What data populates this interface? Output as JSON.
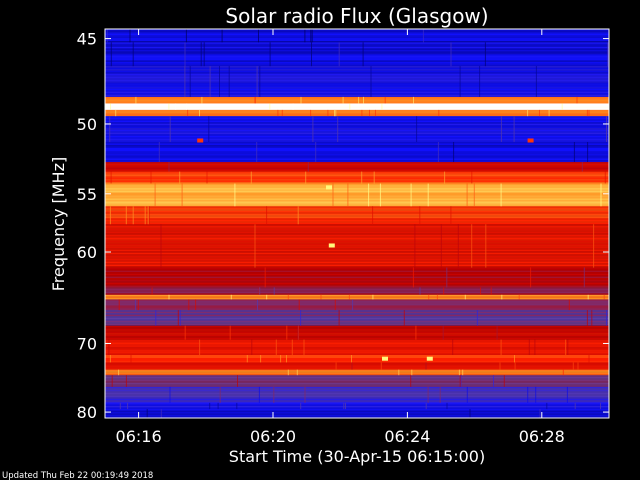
{
  "chart_data": {
    "type": "heatmap",
    "title": "Solar radio Flux (Glasgow)",
    "xlabel": "Start Time (30-Apr-15 06:15:00)",
    "ylabel": "Frequency [MHz]",
    "x_ticks": [
      "06:16",
      "06:20",
      "06:24",
      "06:28"
    ],
    "y_ticks": [
      "45",
      "50",
      "55",
      "60",
      "70",
      "80"
    ],
    "y_tick_values": [
      45,
      50,
      55,
      60,
      70,
      80
    ],
    "xlim": [
      "06:15:00",
      "06:30:00"
    ],
    "ylim": [
      44.5,
      81
    ],
    "y_scale": "reciprocal",
    "colormap": [
      "#000060",
      "#1010ff",
      "#6040a0",
      "#c00000",
      "#ff2000",
      "#ff9020",
      "#ffff80",
      "#ffffff"
    ],
    "bands": [
      {
        "from": 44.5,
        "to": 45.2,
        "level": 0.1
      },
      {
        "from": 45.2,
        "to": 46.5,
        "level": 0.12
      },
      {
        "from": 46.5,
        "to": 48.3,
        "level": 0.15
      },
      {
        "from": 48.3,
        "to": 48.7,
        "level": 0.7
      },
      {
        "from": 48.7,
        "to": 49.1,
        "level": 1.0
      },
      {
        "from": 49.1,
        "to": 49.5,
        "level": 0.7
      },
      {
        "from": 49.5,
        "to": 51.2,
        "level": 0.15
      },
      {
        "from": 51.2,
        "to": 52.6,
        "level": 0.12
      },
      {
        "from": 52.6,
        "to": 53.3,
        "level": 0.45
      },
      {
        "from": 53.3,
        "to": 54.2,
        "level": 0.62
      },
      {
        "from": 54.2,
        "to": 56.0,
        "level": 0.75
      },
      {
        "from": 56.0,
        "to": 57.5,
        "level": 0.6
      },
      {
        "from": 57.5,
        "to": 61.5,
        "level": 0.52
      },
      {
        "from": 61.5,
        "to": 63.5,
        "level": 0.42
      },
      {
        "from": 63.5,
        "to": 64.3,
        "level": 0.38
      },
      {
        "from": 64.3,
        "to": 64.8,
        "level": 0.72
      },
      {
        "from": 64.8,
        "to": 66.0,
        "level": 0.36
      },
      {
        "from": 66.0,
        "to": 67.8,
        "level": 0.3
      },
      {
        "from": 67.8,
        "to": 69.5,
        "level": 0.48
      },
      {
        "from": 69.5,
        "to": 71.5,
        "level": 0.52
      },
      {
        "from": 71.5,
        "to": 72.5,
        "level": 0.6
      },
      {
        "from": 72.5,
        "to": 73.5,
        "level": 0.5
      },
      {
        "from": 73.5,
        "to": 74.3,
        "level": 0.68
      },
      {
        "from": 74.3,
        "to": 76.0,
        "level": 0.3
      },
      {
        "from": 76.0,
        "to": 78.5,
        "level": 0.22
      },
      {
        "from": 78.5,
        "to": 79.5,
        "level": 0.15
      },
      {
        "from": 79.5,
        "to": 81.0,
        "level": 0.12
      }
    ],
    "hotspots": [
      {
        "time": "06:21:40",
        "freq": 54.5,
        "level": 0.85
      },
      {
        "time": "06:21:45",
        "freq": 59.4,
        "level": 0.85
      },
      {
        "time": "06:17:50",
        "freq": 51.1,
        "level": 0.6
      },
      {
        "time": "06:27:40",
        "freq": 51.1,
        "level": 0.6
      },
      {
        "time": "06:23:20",
        "freq": 72.0,
        "level": 0.85
      },
      {
        "time": "06:24:40",
        "freq": 72.0,
        "level": 0.85
      }
    ]
  },
  "footer": {
    "updated": "Updated Thu Feb 22 00:19:49 2018"
  }
}
